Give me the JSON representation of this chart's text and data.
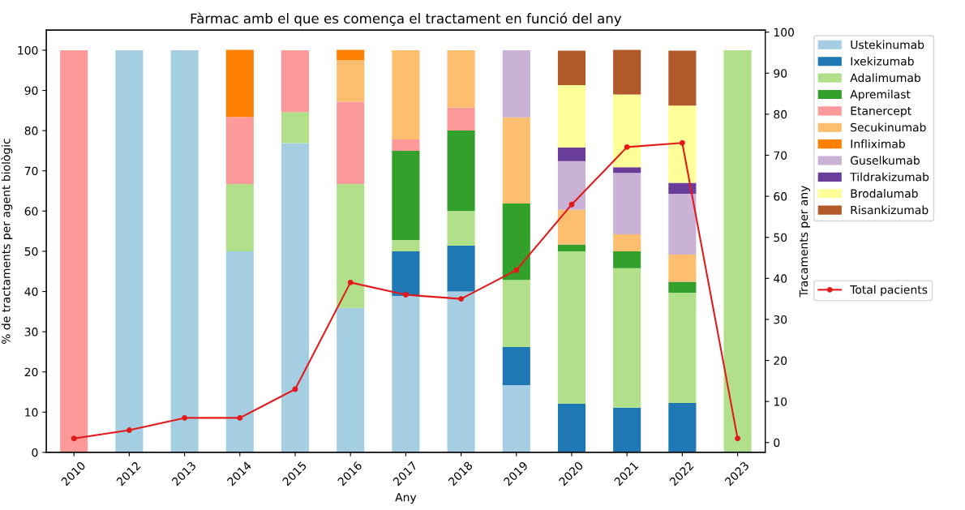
{
  "chart_data": {
    "type": "bar",
    "stacked": true,
    "title": "Fàrmac amb el que es comença el tractament en funció del any",
    "xlabel": "Any",
    "ylabel": "% de tractaments per agent biològic",
    "y2label": "Tracaments per any",
    "categories": [
      "2010",
      "2012",
      "2013",
      "2014",
      "2015",
      "2016",
      "2017",
      "2018",
      "2019",
      "2020",
      "2021",
      "2022",
      "2023"
    ],
    "series": [
      {
        "name": "Ustekinumab",
        "color": "#a6cee3",
        "values": [
          0,
          100,
          100,
          50,
          76.9,
          35.9,
          38.9,
          40,
          16.7,
          0,
          0,
          0,
          0
        ]
      },
      {
        "name": "Ixekizumab",
        "color": "#1f78b4",
        "values": [
          0,
          0,
          0,
          0,
          0,
          0,
          11.1,
          11.4,
          9.5,
          12.1,
          11.1,
          12.3,
          0
        ]
      },
      {
        "name": "Adalimumab",
        "color": "#b2df8a",
        "values": [
          0,
          0,
          0,
          16.7,
          7.7,
          30.8,
          2.8,
          8.6,
          16.7,
          37.9,
          34.7,
          27.4,
          100
        ]
      },
      {
        "name": "Apremilast",
        "color": "#33a02c",
        "values": [
          0,
          0,
          0,
          0,
          0,
          0,
          22.2,
          20,
          19.0,
          1.7,
          4.2,
          2.7,
          0
        ]
      },
      {
        "name": "Etanercept",
        "color": "#fb9a99",
        "values": [
          100,
          0,
          0,
          16.7,
          15.4,
          20.5,
          2.8,
          5.7,
          0,
          0,
          0,
          0,
          0
        ]
      },
      {
        "name": "Secukinumab",
        "color": "#fdbf6f",
        "values": [
          0,
          0,
          0,
          0,
          0,
          10.3,
          22.2,
          14.3,
          21.4,
          8.6,
          4.2,
          6.8,
          0
        ]
      },
      {
        "name": "Infliximab",
        "color": "#ff7f00",
        "values": [
          0,
          0,
          0,
          16.7,
          0,
          2.6,
          0,
          0,
          0,
          0,
          0,
          0,
          0
        ]
      },
      {
        "name": "Guselkumab",
        "color": "#cab2d6",
        "values": [
          0,
          0,
          0,
          0,
          0,
          0,
          0,
          0,
          16.7,
          12.1,
          15.3,
          15.1,
          0
        ]
      },
      {
        "name": "Tildrakizumab",
        "color": "#6a3d9a",
        "values": [
          0,
          0,
          0,
          0,
          0,
          0,
          0,
          0,
          0,
          3.4,
          1.4,
          2.7,
          0
        ]
      },
      {
        "name": "Brodalumab",
        "color": "#ffff99",
        "values": [
          0,
          0,
          0,
          0,
          0,
          0,
          0,
          0,
          0,
          15.5,
          18.1,
          19.2,
          0
        ]
      },
      {
        "name": "Risankizumab",
        "color": "#b15928",
        "values": [
          0,
          0,
          0,
          0,
          0,
          0,
          0,
          0,
          0,
          8.6,
          11.1,
          13.7,
          0
        ]
      },
      {
        "name": "Total pacients",
        "type": "line",
        "axis": "y2",
        "color": "#e31a1c",
        "marker": "circle",
        "values": [
          1,
          3,
          6,
          6,
          13,
          39,
          36,
          35,
          42,
          58,
          72,
          73,
          1
        ]
      }
    ],
    "ylim": [
      0,
      105
    ],
    "yticks": [
      0,
      10,
      20,
      30,
      40,
      50,
      60,
      70,
      80,
      90,
      100
    ],
    "y2lim": [
      -2.4,
      100.5
    ],
    "y2ticks": [
      0,
      10,
      20,
      30,
      40,
      50,
      60,
      70,
      80,
      90,
      100
    ],
    "legend": "right",
    "grid": false
  }
}
